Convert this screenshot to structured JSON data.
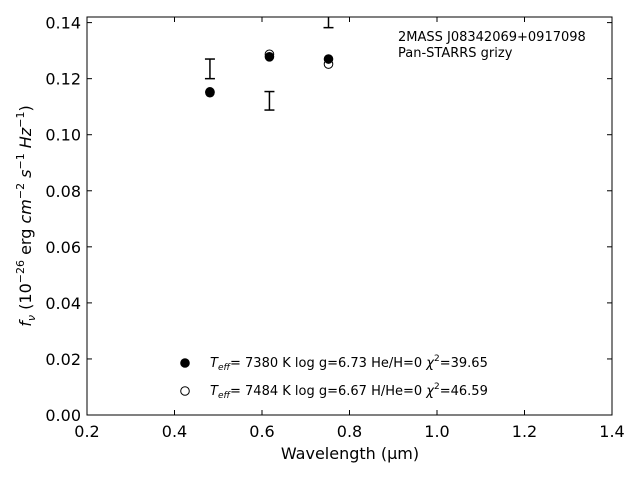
{
  "chart_data": {
    "type": "scatter",
    "title": "",
    "xlabel": "Wavelength (μm)",
    "ylabel_parts": {
      "f": "f",
      "nu": "ν",
      "open": " (10",
      "exp1": "−26",
      "erg": " erg ",
      "cm": "cm",
      "exp2": "−2",
      "s": " s",
      "exp3": "−1",
      "hz": " Hz",
      "exp4": "−1",
      "close": ")"
    },
    "xlim": [
      0.2,
      1.4
    ],
    "ylim": [
      0.0,
      0.142
    ],
    "xticks": [
      0.2,
      0.4,
      0.6,
      0.8,
      1.0,
      1.2,
      1.4
    ],
    "xtick_labels": [
      "0.2",
      "0.4",
      "0.6",
      "0.8",
      "1.0",
      "1.2",
      "1.4"
    ],
    "yticks": [
      0.0,
      0.02,
      0.04,
      0.06,
      0.08,
      0.1,
      0.12,
      0.14
    ],
    "ytick_labels": [
      "0.00",
      "0.02",
      "0.04",
      "0.06",
      "0.08",
      "0.10",
      "0.12",
      "0.14"
    ],
    "grid": false,
    "annotations": [
      "2MASS J08342069+0917098",
      "Pan-STARRS grizy"
    ],
    "observed": [
      {
        "x": 0.481,
        "y": 0.1235,
        "yerr": 0.0035
      },
      {
        "x": 0.617,
        "y": 0.1121,
        "yerr": 0.0033
      },
      {
        "x": 0.752,
        "y": 0.141,
        "yerr": 0.0028
      }
    ],
    "series": [
      {
        "marker": "filled-circle",
        "x": [
          0.481,
          0.617,
          0.752
        ],
        "y": [
          0.1153,
          0.1278,
          0.127
        ],
        "legend": {
          "t": "T",
          "eff": "eff",
          "rest": "=  7380 K  log g=6.73  He/H=0  ",
          "chi": "χ",
          "two": "2",
          "tail": "=39.65"
        }
      },
      {
        "marker": "open-circle",
        "x": [
          0.481,
          0.617,
          0.752
        ],
        "y": [
          0.115,
          0.1287,
          0.1252
        ],
        "legend": {
          "t": "T",
          "eff": "eff",
          "rest": "=  7484 K  log g=6.67  H/He=0  ",
          "chi": "χ",
          "two": "2",
          "tail": "=46.59"
        }
      }
    ],
    "legend_placement": "lower-center"
  }
}
